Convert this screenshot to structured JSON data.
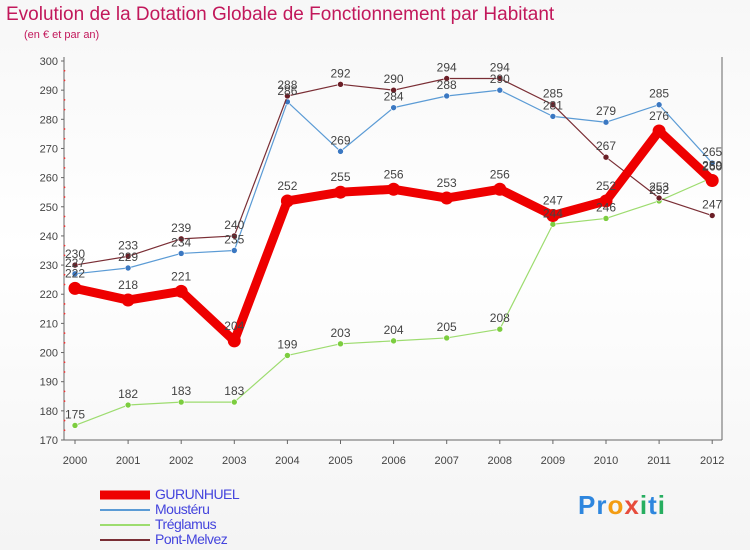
{
  "title": "Evolution de la Dotation Globale de Fonctionnement par Habitant",
  "subtitle": "(en € et par an)",
  "brand": {
    "letters": [
      "P",
      "r",
      "o",
      "x",
      "i",
      "t",
      "i"
    ],
    "colors": [
      "#2e86de",
      "#2e86de",
      "#f39c12",
      "#e74c3c",
      "#27ae60",
      "#2e86de",
      "#27ae60"
    ]
  },
  "chart_data": {
    "type": "line",
    "title": "Evolution de la Dotation Globale de Fonctionnement par Habitant",
    "subtitle": "(en € et par an)",
    "categories": [
      "2000",
      "2001",
      "2002",
      "2003",
      "2004",
      "2005",
      "2006",
      "2007",
      "2008",
      "2009",
      "2010",
      "2011",
      "2012"
    ],
    "ylim": [
      170,
      300
    ],
    "yticks": [
      170,
      180,
      190,
      200,
      210,
      220,
      230,
      240,
      250,
      260,
      270,
      280,
      290,
      300
    ],
    "grid": false,
    "series": [
      {
        "name": "GURUNHUEL",
        "color": "#ee0000",
        "marker": "#ee0000",
        "width": 9,
        "values": [
          222,
          218,
          221,
          204,
          252,
          255,
          256,
          253,
          256,
          247,
          252,
          276,
          259
        ]
      },
      {
        "name": "Moustéru",
        "color": "#5b9bd5",
        "marker": "#3b78c2",
        "width": 1.2,
        "values": [
          227,
          229,
          234,
          235,
          286,
          269,
          284,
          288,
          290,
          281,
          279,
          285,
          265
        ]
      },
      {
        "name": "Tréglamus",
        "color": "#9ddc6f",
        "marker": "#7ccd3f",
        "width": 1.2,
        "values": [
          175,
          182,
          183,
          183,
          199,
          203,
          204,
          205,
          208,
          244,
          246,
          252,
          260
        ]
      },
      {
        "name": "Pont-Melvez",
        "color": "#7a2e35",
        "marker": "#6b1f27",
        "width": 1.2,
        "values": [
          230,
          233,
          239,
          240,
          288,
          292,
          290,
          294,
          294,
          285,
          267,
          253,
          247
        ]
      }
    ],
    "labels": {
      "GURUNHUEL": [
        "222",
        "218",
        "221",
        "204",
        "252",
        "255",
        "256",
        "253",
        "256",
        "247",
        "252",
        "276",
        "259"
      ],
      "Moustéru": [
        "227",
        "229",
        "234",
        "235",
        "286",
        "269",
        "284",
        "288",
        "290",
        "281",
        "279",
        "285",
        "265"
      ],
      "Tréglamus": [
        "175",
        "182",
        "183",
        "183",
        "199",
        "203",
        "204",
        "205",
        "208",
        "244",
        "246",
        "252",
        "260"
      ],
      "Pont-Melvez": [
        "230",
        "233",
        "239",
        "240",
        "288",
        "292",
        "290",
        "294",
        "294",
        "285",
        "267",
        "253",
        "247"
      ]
    },
    "legend": [
      "GURUNHUEL",
      "Moustéru",
      "Tréglamus",
      "Pont-Melvez"
    ],
    "legend_position": "bottom-left"
  }
}
